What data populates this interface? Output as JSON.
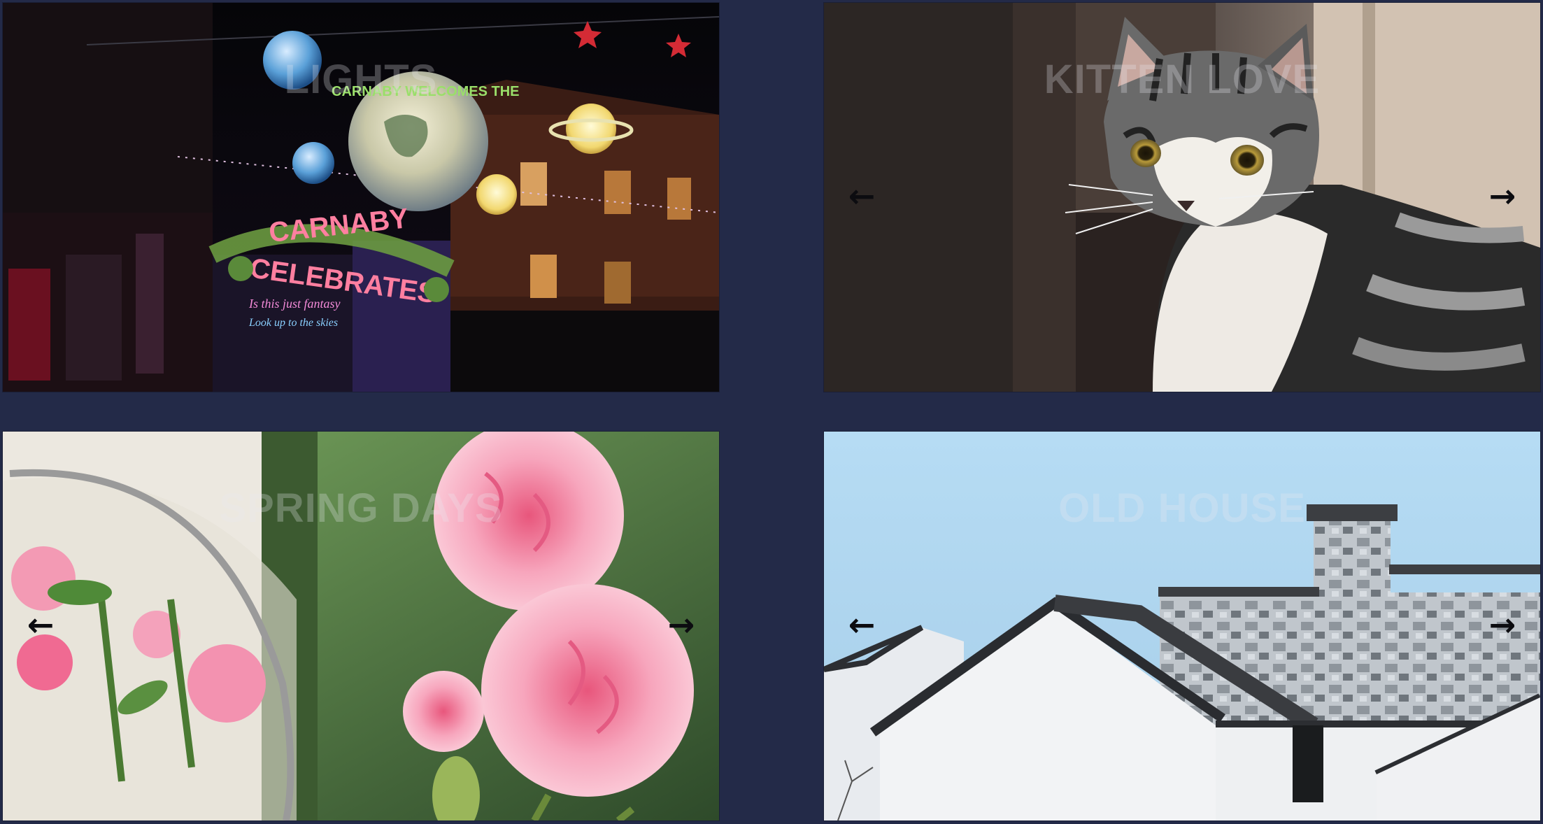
{
  "slides": [
    {
      "title": "LIGHTS",
      "prev_icon": "arrow-left",
      "next_icon": "arrow-right"
    },
    {
      "title": "KITTEN LOVE",
      "prev_icon": "arrow-left",
      "next_icon": "arrow-right"
    },
    {
      "title": "SPRING DAYS",
      "prev_icon": "arrow-left",
      "next_icon": "arrow-right"
    },
    {
      "title": "OLD HOUSE",
      "prev_icon": "arrow-left",
      "next_icon": "arrow-right"
    }
  ],
  "lights_signs": {
    "arch_line1": "CARNABY",
    "arch_line2": "CELEBRATES",
    "banner": "CARNABY WELCOMES THE",
    "neon1": "Is this just fantasy",
    "neon2": "Look up to the skies"
  },
  "arrows": {
    "prev_glyph": "←",
    "next_glyph": "→"
  },
  "colors": {
    "page_background": "#232a48",
    "arrow": "#0c0c10",
    "title_overlay": "rgba(235,235,240,0.28)"
  }
}
